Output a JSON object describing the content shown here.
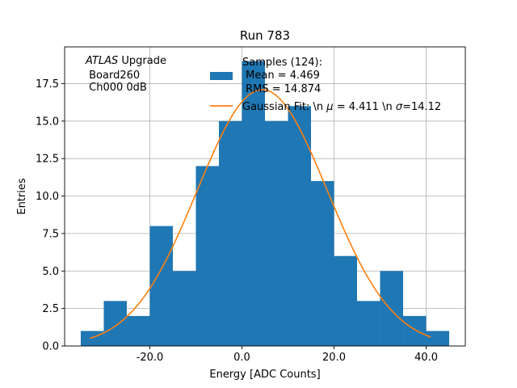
{
  "chart_data": {
    "type": "bar",
    "title": "Run 783",
    "xlabel": "Energy [ADC Counts]",
    "ylabel": "Entries",
    "xlim": [
      -38.5,
      48.5
    ],
    "ylim": [
      0,
      19.95
    ],
    "grid": true,
    "bin_edges": [
      -35,
      -30,
      -25,
      -20,
      -15,
      -10,
      -5,
      0,
      5,
      10,
      15,
      20,
      25,
      30,
      35,
      40,
      45
    ],
    "values": [
      1,
      3,
      2,
      8,
      5,
      12,
      15,
      19,
      15,
      16,
      11,
      6,
      3,
      5,
      2,
      1
    ],
    "bar_color": "#1f77b4",
    "fit_color": "#ff7f0e",
    "fit": {
      "mu": 4.411,
      "sigma": 14.12,
      "amplitude": 17.1,
      "x_range": [
        -33,
        41
      ]
    },
    "xticks": [
      -20,
      0,
      20,
      40
    ],
    "xtick_labels": [
      "-20.0",
      "0.0",
      "20.0",
      "40.0"
    ],
    "yticks": [
      0,
      2.5,
      5,
      7.5,
      10,
      12.5,
      15,
      17.5
    ],
    "ytick_labels": [
      "0.0",
      "2.5",
      "5.0",
      "7.5",
      "10.0",
      "12.5",
      "15.0",
      "17.5"
    ],
    "annotation": {
      "atlas": "ATLAS",
      "upgrade": " Upgrade",
      "board": " Board260",
      "channel": " Ch000 0dB"
    },
    "legend": {
      "placement": "top-right",
      "samples_line1": "Samples (124):",
      "samples_line2": " Mean = 4.469",
      "samples_line3": " RMS = 14.874",
      "fit_prefix": "Gaussian Fit: \\n ",
      "fit_mu_symbol": "μ",
      "fit_mid": " = 4.411 \\n ",
      "fit_sigma_symbol": "σ",
      "fit_suffix": "=14.12"
    }
  }
}
